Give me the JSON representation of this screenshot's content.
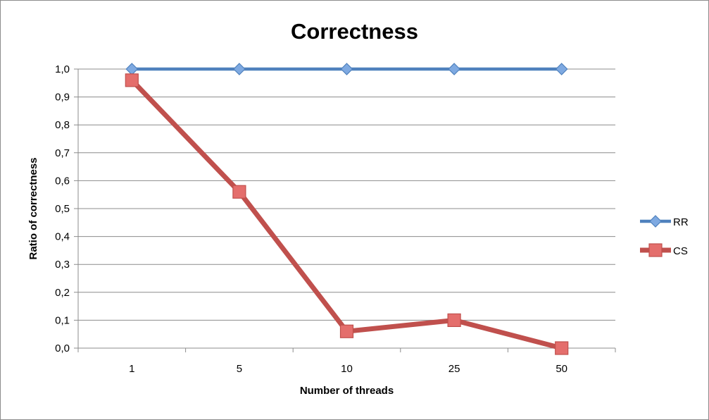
{
  "chart_data": {
    "type": "line",
    "title": "Correctness",
    "xlabel": "Number of threads",
    "ylabel": "Ratio of correctness",
    "categories": [
      "1",
      "5",
      "10",
      "25",
      "50"
    ],
    "yticks": [
      "0,0",
      "0,1",
      "0,2",
      "0,3",
      "0,4",
      "0,5",
      "0,6",
      "0,7",
      "0,8",
      "0,9",
      "1,0"
    ],
    "ylim": [
      0,
      1
    ],
    "grid": true,
    "legend": "right",
    "series": [
      {
        "name": "RR",
        "values": [
          1.0,
          1.0,
          1.0,
          1.0,
          1.0
        ],
        "color": "#4f81bd",
        "marker": "diamond"
      },
      {
        "name": "CS",
        "values": [
          0.96,
          0.56,
          0.06,
          0.1,
          0.0
        ],
        "color": "#c0504d",
        "marker": "square"
      }
    ]
  }
}
